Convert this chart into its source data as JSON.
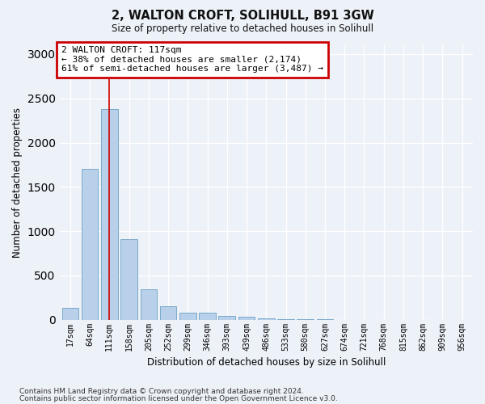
{
  "title1": "2, WALTON CROFT, SOLIHULL, B91 3GW",
  "title2": "Size of property relative to detached houses in Solihull",
  "xlabel": "Distribution of detached houses by size in Solihull",
  "ylabel": "Number of detached properties",
  "bar_labels": [
    "17sqm",
    "64sqm",
    "111sqm",
    "158sqm",
    "205sqm",
    "252sqm",
    "299sqm",
    "346sqm",
    "393sqm",
    "439sqm",
    "486sqm",
    "533sqm",
    "580sqm",
    "627sqm",
    "674sqm",
    "721sqm",
    "768sqm",
    "815sqm",
    "862sqm",
    "909sqm",
    "956sqm"
  ],
  "bar_values": [
    130,
    1700,
    2380,
    910,
    340,
    155,
    80,
    80,
    45,
    30,
    15,
    5,
    3,
    2,
    1,
    0,
    0,
    0,
    0,
    0,
    0
  ],
  "bar_color": "#b8d0ea",
  "bar_edge_color": "#7aaac8",
  "property_bin_index": 2,
  "annotation_text": "2 WALTON CROFT: 117sqm\n← 38% of detached houses are smaller (2,174)\n61% of semi-detached houses are larger (3,487) →",
  "annotation_box_facecolor": "#ffffff",
  "annotation_box_edgecolor": "#cc0000",
  "property_line_color": "#cc0000",
  "bg_color": "#edf1f8",
  "grid_color": "#ffffff",
  "ylim_max": 3100,
  "yticks": [
    0,
    500,
    1000,
    1500,
    2000,
    2500,
    3000
  ],
  "footnote1": "Contains HM Land Registry data © Crown copyright and database right 2024.",
  "footnote2": "Contains public sector information licensed under the Open Government Licence v3.0."
}
